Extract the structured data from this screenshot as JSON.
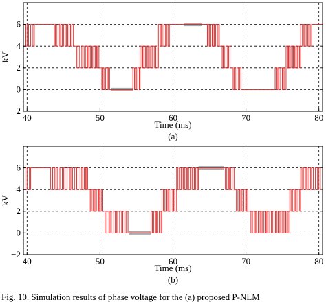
{
  "chart_data": [
    {
      "type": "line",
      "sublabel": "(a)",
      "xlabel": "Time (ms)",
      "ylabel": "kV",
      "xlim": [
        39.5,
        80.5
      ],
      "ylim": [
        -2,
        8
      ],
      "xticks": [
        40,
        50,
        60,
        70,
        80
      ],
      "yticks": [
        -2,
        0,
        2,
        4,
        6
      ],
      "ytick_labels": [
        "−2",
        "0",
        "2",
        "4",
        "6"
      ],
      "grid": true,
      "series_color": "#e02020",
      "highlight_color": "#aaaaaa",
      "segments": [
        {
          "from": 39.5,
          "to": 41.0,
          "low": 4,
          "high": 6,
          "pulses": 3
        },
        {
          "from": 41.0,
          "to": 43.5,
          "low": 6,
          "high": 6,
          "pulses": 0
        },
        {
          "from": 43.5,
          "to": 46.5,
          "low": 4,
          "high": 6,
          "pulses": 8
        },
        {
          "from": 46.5,
          "to": 48.0,
          "low": 2,
          "high": 4,
          "pulses": 3
        },
        {
          "from": 48.0,
          "to": 50.0,
          "low": 2,
          "high": 4,
          "pulses": 6
        },
        {
          "from": 50.0,
          "to": 51.5,
          "low": 0,
          "high": 2,
          "pulses": 4
        },
        {
          "from": 51.5,
          "to": 54.5,
          "low": 0,
          "high": 0,
          "pulses": 0
        },
        {
          "from": 54.5,
          "to": 55.5,
          "low": 0,
          "high": 2,
          "pulses": 3
        },
        {
          "from": 55.5,
          "to": 58.0,
          "low": 2,
          "high": 4,
          "pulses": 7
        },
        {
          "from": 58.0,
          "to": 59.5,
          "low": 4,
          "high": 6,
          "pulses": 4
        },
        {
          "from": 59.5,
          "to": 64.5,
          "low": 6,
          "high": 6,
          "pulses": 0
        },
        {
          "from": 64.5,
          "to": 66.5,
          "low": 4,
          "high": 6,
          "pulses": 6
        },
        {
          "from": 66.5,
          "to": 68.0,
          "low": 2,
          "high": 4,
          "pulses": 4
        },
        {
          "from": 68.0,
          "to": 69.5,
          "low": 0,
          "high": 2,
          "pulses": 4
        },
        {
          "from": 69.5,
          "to": 74.0,
          "low": 0,
          "high": 0,
          "pulses": 0
        },
        {
          "from": 74.0,
          "to": 75.5,
          "low": 0,
          "high": 2,
          "pulses": 4
        },
        {
          "from": 75.5,
          "to": 77.5,
          "low": 2,
          "high": 4,
          "pulses": 6
        },
        {
          "from": 77.5,
          "to": 79.0,
          "low": 4,
          "high": 6,
          "pulses": 4
        },
        {
          "from": 79.0,
          "to": 80.5,
          "low": 6,
          "high": 6,
          "pulses": 0
        }
      ],
      "highlights": [
        {
          "from": 51.5,
          "to": 54.5,
          "y": 0
        },
        {
          "from": 61.5,
          "to": 64.0,
          "y": 6
        }
      ]
    },
    {
      "type": "line",
      "sublabel": "(b)",
      "xlabel": "Time (ms)",
      "ylabel": "kV",
      "xlim": [
        39.5,
        80.5
      ],
      "ylim": [
        -2,
        8
      ],
      "xticks": [
        40,
        50,
        60,
        70,
        80
      ],
      "yticks": [
        -2,
        0,
        2,
        4,
        6
      ],
      "ytick_labels": [
        "−2",
        "0",
        "2",
        "4",
        "6"
      ],
      "grid": true,
      "series_color": "#e02020",
      "highlight_color": "#aaaaaa",
      "segments": [
        {
          "from": 39.5,
          "to": 40.5,
          "low": 4,
          "high": 6,
          "pulses": 2
        },
        {
          "from": 40.5,
          "to": 43.0,
          "low": 6,
          "high": 6,
          "pulses": 0
        },
        {
          "from": 43.0,
          "to": 47.5,
          "low": 4,
          "high": 6,
          "pulses": 9
        },
        {
          "from": 47.5,
          "to": 48.5,
          "low": 4,
          "high": 6,
          "pulses": 3
        },
        {
          "from": 48.5,
          "to": 50.5,
          "low": 2,
          "high": 4,
          "pulses": 6
        },
        {
          "from": 50.5,
          "to": 54.0,
          "low": 0,
          "high": 2,
          "pulses": 8
        },
        {
          "from": 54.0,
          "to": 57.0,
          "low": 0,
          "high": 0,
          "pulses": 0
        },
        {
          "from": 57.0,
          "to": 58.5,
          "low": 0,
          "high": 2,
          "pulses": 4
        },
        {
          "from": 58.5,
          "to": 60.5,
          "low": 2,
          "high": 4,
          "pulses": 5
        },
        {
          "from": 60.5,
          "to": 63.5,
          "low": 4,
          "high": 6,
          "pulses": 8
        },
        {
          "from": 63.5,
          "to": 67.0,
          "low": 6,
          "high": 6,
          "pulses": 0
        },
        {
          "from": 67.0,
          "to": 68.5,
          "low": 4,
          "high": 6,
          "pulses": 4
        },
        {
          "from": 68.5,
          "to": 70.5,
          "low": 2,
          "high": 4,
          "pulses": 5
        },
        {
          "from": 70.5,
          "to": 76.0,
          "low": 0,
          "high": 2,
          "pulses": 14
        },
        {
          "from": 76.0,
          "to": 77.5,
          "low": 2,
          "high": 4,
          "pulses": 4
        },
        {
          "from": 77.5,
          "to": 79.0,
          "low": 4,
          "high": 6,
          "pulses": 4
        },
        {
          "from": 79.0,
          "to": 80.5,
          "low": 4,
          "high": 6,
          "pulses": 3
        }
      ],
      "highlights": [
        {
          "from": 54.0,
          "to": 57.0,
          "y": 0
        },
        {
          "from": 63.5,
          "to": 67.0,
          "y": 6
        }
      ]
    }
  ],
  "caption": "Fig. 10.   Simulation results of phase voltage for the (a) proposed P-NLM"
}
